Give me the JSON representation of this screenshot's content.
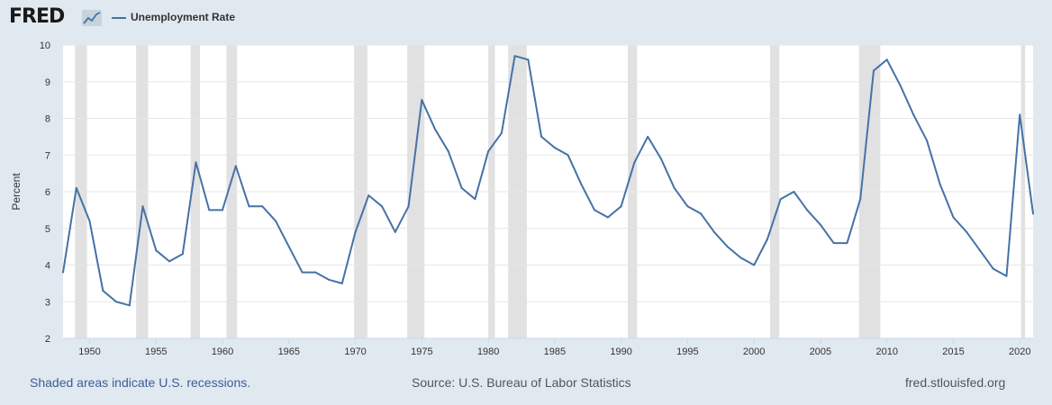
{
  "header": {
    "logo_text": "FRED",
    "logo_icon": "line-chart-icon",
    "series_name": "Unemployment Rate"
  },
  "footer": {
    "recession_note": "Shaded areas indicate U.S. recessions.",
    "source": "Source: U.S. Bureau of Labor Statistics",
    "site": "fred.stlouisfed.org"
  },
  "colors": {
    "line": "#4572a7",
    "recession": "#e1e1e1",
    "background": "#e1e9f0",
    "plot": "#ffffff"
  },
  "chart_data": {
    "type": "line",
    "title": "",
    "xlabel": "",
    "ylabel": "Percent",
    "xlim": [
      1948,
      2021
    ],
    "ylim": [
      2,
      10
    ],
    "yticks": [
      2,
      3,
      4,
      5,
      6,
      7,
      8,
      9,
      10
    ],
    "xticks": [
      1950,
      1955,
      1960,
      1965,
      1970,
      1975,
      1980,
      1985,
      1990,
      1995,
      2000,
      2005,
      2010,
      2015,
      2020
    ],
    "grid": true,
    "legend": "top-left",
    "recessions": [
      [
        1948.9,
        1949.8
      ],
      [
        1953.5,
        1954.4
      ],
      [
        1957.6,
        1958.3
      ],
      [
        1960.3,
        1961.1
      ],
      [
        1969.9,
        1970.9
      ],
      [
        1973.9,
        1975.2
      ],
      [
        1980.0,
        1980.5
      ],
      [
        1981.5,
        1982.9
      ],
      [
        1990.5,
        1991.2
      ],
      [
        2001.2,
        2001.9
      ],
      [
        2007.9,
        2009.5
      ],
      [
        2020.1,
        2020.4
      ]
    ],
    "series": [
      {
        "name": "Unemployment Rate",
        "x": [
          1948,
          1949,
          1950,
          1951,
          1952,
          1953,
          1954,
          1955,
          1956,
          1957,
          1958,
          1959,
          1960,
          1961,
          1962,
          1963,
          1964,
          1965,
          1966,
          1967,
          1968,
          1969,
          1970,
          1971,
          1972,
          1973,
          1974,
          1975,
          1976,
          1977,
          1978,
          1979,
          1980,
          1981,
          1982,
          1983,
          1984,
          1985,
          1986,
          1987,
          1988,
          1989,
          1990,
          1991,
          1992,
          1993,
          1994,
          1995,
          1996,
          1997,
          1998,
          1999,
          2000,
          2001,
          2002,
          2003,
          2004,
          2005,
          2006,
          2007,
          2008,
          2009,
          2010,
          2011,
          2012,
          2013,
          2014,
          2015,
          2016,
          2017,
          2018,
          2019,
          2020,
          2021
        ],
        "values": [
          3.8,
          6.1,
          5.2,
          3.3,
          3.0,
          2.9,
          5.6,
          4.4,
          4.1,
          4.3,
          6.8,
          5.5,
          5.5,
          6.7,
          5.6,
          5.6,
          5.2,
          4.5,
          3.8,
          3.8,
          3.6,
          3.5,
          4.9,
          5.9,
          5.6,
          4.9,
          5.6,
          8.5,
          7.7,
          7.1,
          6.1,
          5.8,
          7.1,
          7.6,
          9.7,
          9.6,
          7.5,
          7.2,
          7.0,
          6.2,
          5.5,
          5.3,
          5.6,
          6.8,
          7.5,
          6.9,
          6.1,
          5.6,
          5.4,
          4.9,
          4.5,
          4.2,
          4.0,
          4.7,
          5.8,
          6.0,
          5.5,
          5.1,
          4.6,
          4.6,
          5.8,
          9.3,
          9.6,
          8.9,
          8.1,
          7.4,
          6.2,
          5.3,
          4.9,
          4.4,
          3.9,
          3.7,
          8.1,
          5.4
        ]
      }
    ]
  }
}
